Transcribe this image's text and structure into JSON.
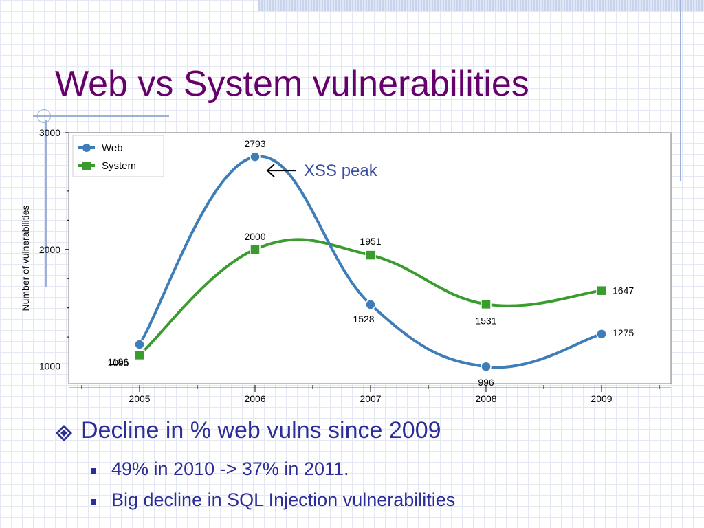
{
  "slide": {
    "title": "Web vs System vulnerabilities",
    "bullets": [
      {
        "level": 1,
        "text": "Decline in % web vulns since 2009"
      },
      {
        "level": 2,
        "text": "49% in 2010 -> 37% in 2011."
      },
      {
        "level": 2,
        "text": "Big decline in SQL Injection vulnerabilities"
      }
    ],
    "colors": {
      "title": "#66006a",
      "bullet_text": "#2d2d9a"
    }
  },
  "chart_data": {
    "type": "line",
    "x": [
      "2005",
      "2006",
      "2007",
      "2008",
      "2009"
    ],
    "series": [
      {
        "name": "Web",
        "values": [
          1186,
          2793,
          1528,
          996,
          1275
        ],
        "color": "#3f7db8",
        "marker": "circle"
      },
      {
        "name": "System",
        "values": [
          1095,
          2000,
          1951,
          1531,
          1647
        ],
        "color": "#3a9c2f",
        "marker": "square"
      }
    ],
    "ylabel": "Number of vulnerabilities",
    "xlabel": "",
    "ylim": [
      850,
      3000
    ],
    "yticks": [
      "1000",
      "2000",
      "3000"
    ],
    "legend_position": "top-left",
    "smooth": true,
    "annotation": {
      "text": "XSS peak",
      "target_series": "Web",
      "target_x": "2006",
      "color": "#3a4fa0"
    }
  }
}
